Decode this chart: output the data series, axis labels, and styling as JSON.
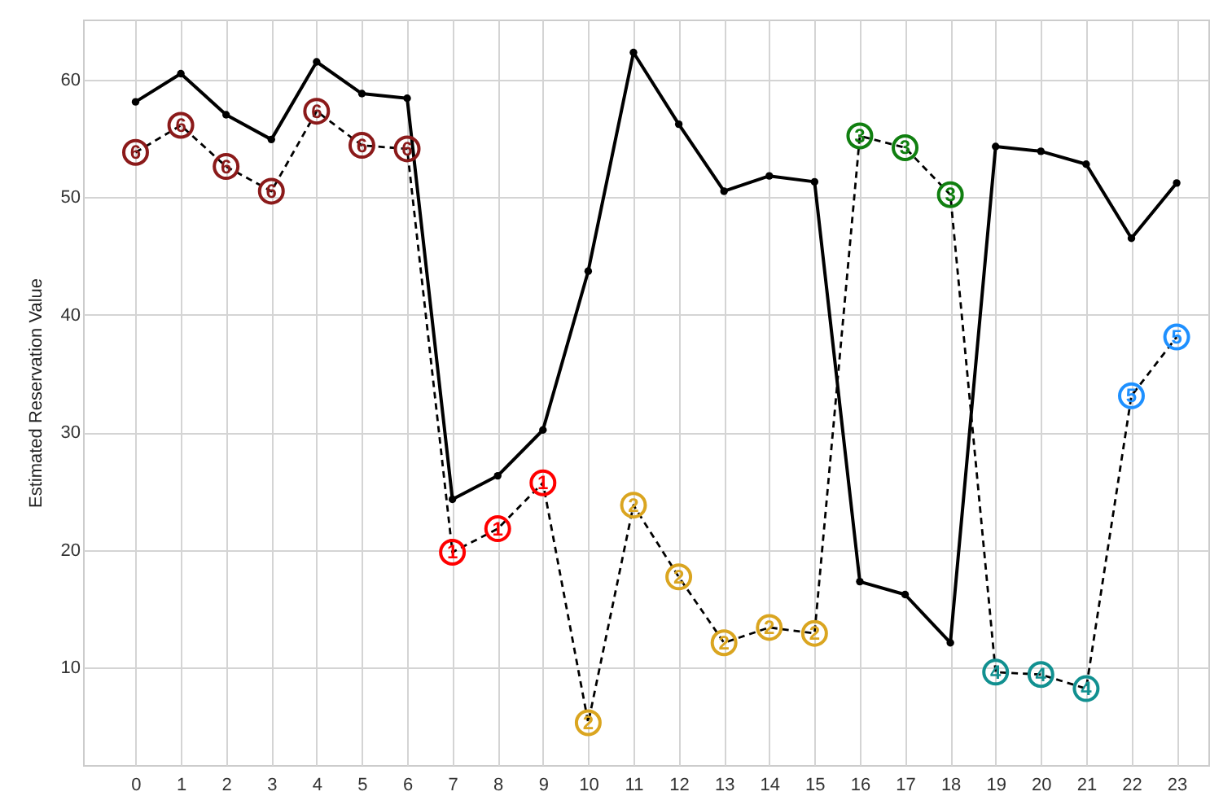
{
  "chart_data": {
    "type": "line",
    "ylabel": "Estimated Reservation Value",
    "x": [
      0,
      1,
      2,
      3,
      4,
      5,
      6,
      7,
      8,
      9,
      10,
      11,
      12,
      13,
      14,
      15,
      16,
      17,
      18,
      19,
      20,
      21,
      22,
      23
    ],
    "xlim": [
      -1.16,
      23.7
    ],
    "xticks": [
      0,
      1,
      2,
      3,
      4,
      5,
      6,
      7,
      8,
      9,
      10,
      11,
      12,
      13,
      14,
      15,
      16,
      17,
      18,
      19,
      20,
      21,
      22,
      23
    ],
    "ylim": [
      1.7,
      65.1
    ],
    "yticks": [
      10,
      20,
      30,
      40,
      50,
      60
    ],
    "grid": true,
    "series": [
      {
        "color": "#000000",
        "marker": "circle",
        "line_style": "solid",
        "values": [
          58.1,
          60.5,
          57.0,
          54.9,
          61.5,
          58.8,
          58.4,
          24.3,
          26.3,
          30.2,
          43.7,
          62.3,
          56.2,
          50.5,
          51.8,
          51.3,
          17.3,
          16.2,
          12.1,
          54.3,
          53.9,
          52.8,
          46.5,
          51.2
        ]
      },
      {
        "color": "#000000",
        "line_style": "dashed",
        "values": [
          53.8,
          56.1,
          52.6,
          50.5,
          57.3,
          54.4,
          54.1,
          19.8,
          21.8,
          25.7,
          5.3,
          23.8,
          17.7,
          12.1,
          13.4,
          12.9,
          55.2,
          54.2,
          50.2,
          9.6,
          9.4,
          8.2,
          33.1,
          38.1
        ]
      },
      {
        "type": "scatter",
        "name": "6",
        "color": "#8b1a1a",
        "x": [
          0,
          1,
          2,
          3,
          4,
          5,
          6
        ],
        "values": [
          53.8,
          56.1,
          52.6,
          50.5,
          57.3,
          54.4,
          54.1
        ]
      },
      {
        "type": "scatter",
        "name": "1",
        "color": "#ff0000",
        "x": [
          7,
          8,
          9
        ],
        "values": [
          19.8,
          21.8,
          25.7
        ]
      },
      {
        "type": "scatter",
        "name": "2",
        "color": "#daa520",
        "x": [
          10,
          11,
          12,
          13,
          14,
          15
        ],
        "values": [
          5.3,
          23.8,
          17.7,
          12.1,
          13.4,
          12.9
        ]
      },
      {
        "type": "scatter",
        "name": "3",
        "color": "#107f10",
        "x": [
          16,
          17,
          18
        ],
        "values": [
          55.2,
          54.2,
          50.2
        ]
      },
      {
        "type": "scatter",
        "name": "4",
        "color": "#119090",
        "x": [
          19,
          20,
          21
        ],
        "values": [
          9.6,
          9.4,
          8.2
        ]
      },
      {
        "type": "scatter",
        "name": "5",
        "color": "#1e90ff",
        "x": [
          22,
          23
        ],
        "values": [
          33.1,
          38.1
        ]
      }
    ]
  }
}
